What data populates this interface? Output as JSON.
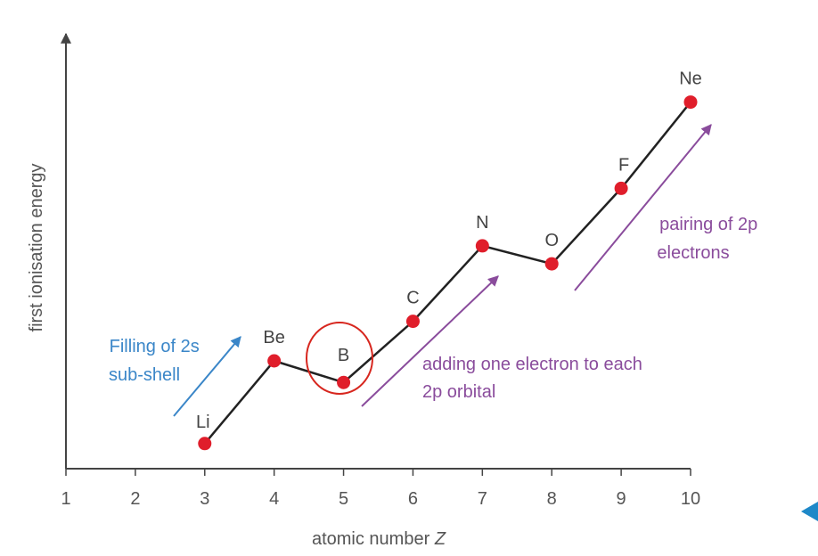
{
  "chart_data": {
    "type": "line",
    "xlabel": "atomic number",
    "xlabel_var": "Z",
    "ylabel": "first ionisation energy",
    "xticks": [
      1,
      2,
      3,
      4,
      5,
      6,
      7,
      8,
      9,
      10
    ],
    "xlim": [
      1,
      10
    ],
    "ylim": [
      0,
      10
    ],
    "series": [
      {
        "points": [
          {
            "x": 3,
            "y": 0.7,
            "label": "Li"
          },
          {
            "x": 4,
            "y": 3.0,
            "label": "Be"
          },
          {
            "x": 5,
            "y": 2.4,
            "label": "B"
          },
          {
            "x": 6,
            "y": 4.1,
            "label": "C"
          },
          {
            "x": 7,
            "y": 6.2,
            "label": "N"
          },
          {
            "x": 8,
            "y": 5.7,
            "label": "O"
          },
          {
            "x": 9,
            "y": 7.8,
            "label": "F"
          },
          {
            "x": 10,
            "y": 10.2,
            "label": "Ne"
          }
        ]
      }
    ],
    "annotations": [
      {
        "lines": [
          "Filling of 2s",
          "sub-shell"
        ],
        "color": "#3a86c8"
      },
      {
        "lines": [
          "adding one electron to each",
          "2p orbital"
        ],
        "color": "#8a4c9c"
      },
      {
        "lines": [
          "pairing of 2p",
          "electrons"
        ],
        "color": "#8a4c9c"
      }
    ],
    "highlight": {
      "element": "B",
      "color": "#d7261e"
    },
    "colors": {
      "line": "#222222",
      "points": "#e01e2b",
      "axis": "#444444",
      "tick_text": "#555555",
      "nav_triangle": "#1e88c8"
    }
  }
}
